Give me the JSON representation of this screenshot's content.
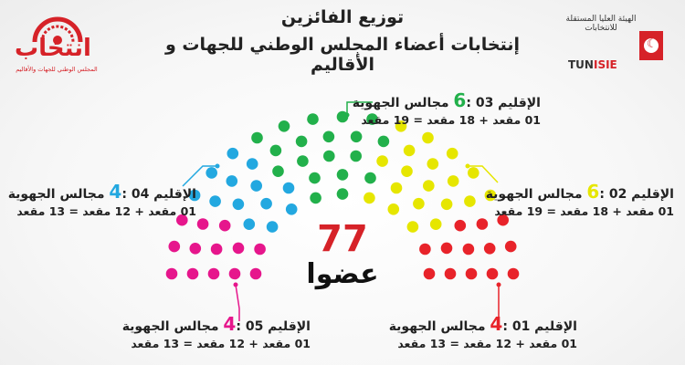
{
  "header": {
    "title_line1": "توزيع الفائزين",
    "title_line2": "إنتخابات أعضاء المجلس الوطني للجهات و الأقاليم"
  },
  "logo_left": {
    "word": "انتخاب",
    "subtitle": "المجلس الوطني للجهات والأقاليم"
  },
  "logo_right": {
    "name_ar": "الهيئة العليا المستقلة للانتخابات",
    "name_fr_a": "TUN",
    "name_fr_b": "ISIE"
  },
  "total": {
    "value": "77",
    "word": "عضوا"
  },
  "colors": {
    "region_01": "#e8232a",
    "region_02": "#e6e600",
    "region_03": "#22b04b",
    "region_04": "#23a8e0",
    "region_05": "#e6168c"
  },
  "regions": [
    {
      "id": "r03",
      "line1_pre": "الإقليم 03 :",
      "count": "6",
      "line1_post": "مجالس الجهوية",
      "line2": "01 مقعد + 18 مقعد = 19 مقعد",
      "color": "#22b04b"
    },
    {
      "id": "r04",
      "line1_pre": "الإقليم 04 :",
      "count": "4",
      "line1_post": "مجالس الجهوية",
      "line2": "01 مقعد + 12 مقعد = 13 مقعد",
      "color": "#23a8e0"
    },
    {
      "id": "r02",
      "line1_pre": "الإقليم 02 :",
      "count": "6",
      "line1_post": "مجالس الجهوية",
      "line2": "01 مقعد + 18 مقعد = 19 مقعد",
      "color": "#e6e600"
    },
    {
      "id": "r05",
      "line1_pre": "الإقليم 05 :",
      "count": "4",
      "line1_post": "مجالس الجهوية",
      "line2": "01 مقعد + 12 مقعد = 13 مقعد",
      "color": "#e6168c"
    },
    {
      "id": "r01",
      "line1_pre": "الإقليم 01 :",
      "count": "4",
      "line1_post": "مجالس الجهوية",
      "line2": "01 مقعد + 12 مقعد = 13 مقعد",
      "color": "#e8232a"
    }
  ],
  "seats": {
    "order_left_to_right": [
      "r05",
      "r04",
      "r03",
      "r02",
      "r01"
    ],
    "counts": [
      13,
      13,
      19,
      19,
      13
    ]
  }
}
